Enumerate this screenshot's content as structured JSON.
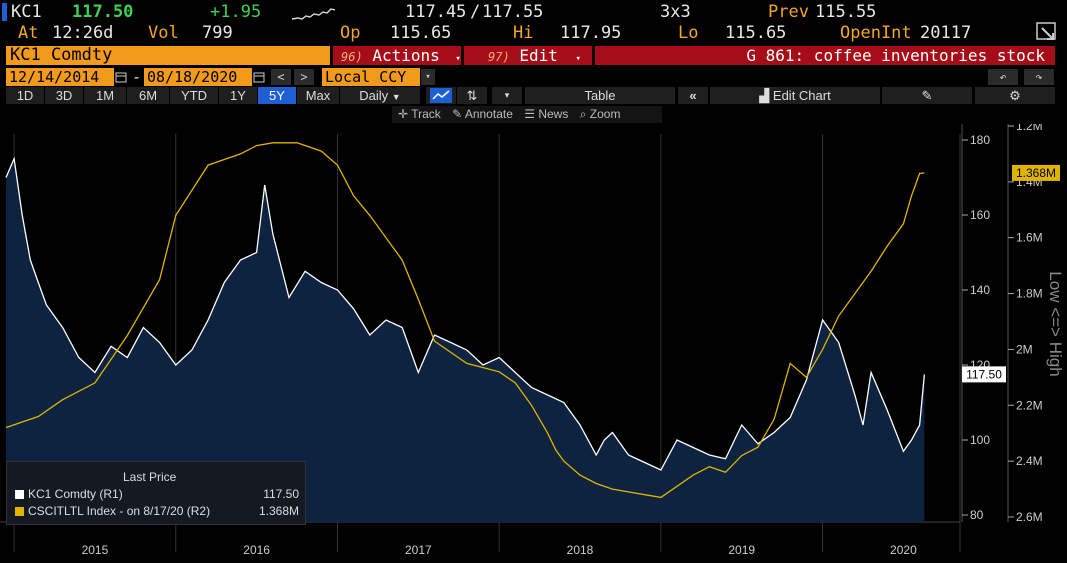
{
  "quote": {
    "ticker": "KC1",
    "last": "117.50",
    "change": "+1.95",
    "bidask_bid": "117.45",
    "bidask_ask": "117.55",
    "size": "3x3",
    "prev_label": "Prev",
    "prev": "115.55",
    "at_label": "At",
    "time": "12:26d",
    "vol_label": "Vol",
    "vol": "799",
    "op_label": "Op",
    "open": "115.65",
    "hi_label": "Hi",
    "high": "117.95",
    "lo_label": "Lo",
    "low": "115.65",
    "openint_label": "OpenInt",
    "openint": "20117"
  },
  "security": {
    "name": "KC1 Comdty",
    "actions_num": "96)",
    "actions": "Actions",
    "edit_num": "97)",
    "edit": "Edit",
    "graph_title": "G 861: coffee inventories stock"
  },
  "range": {
    "start": "12/14/2014",
    "dash": "-",
    "end": "08/18/2020",
    "currency": "Local CCY"
  },
  "periods": [
    "1D",
    "3D",
    "1M",
    "6M",
    "YTD",
    "1Y",
    "5Y",
    "Max"
  ],
  "selected_period": "5Y",
  "toolbar": {
    "frequency": "Daily",
    "table": "Table",
    "edit_chart": "Edit Chart"
  },
  "chart_tools": {
    "track": "Track",
    "annotate": "Annotate",
    "news": "News",
    "zoom": "Zoom"
  },
  "legend": {
    "title": "Last Price",
    "s1_name": "KC1 Comdty  (R1)",
    "s1_value": "117.50",
    "s2_name": "CSCITLTL Index -  on 8/17/20  (R2)",
    "s2_value": "1.368M"
  },
  "axis_label_right2": "Low <=> High",
  "chart_data": {
    "type": "line",
    "x_years": [
      "2015",
      "2016",
      "2017",
      "2018",
      "2019",
      "2020"
    ],
    "price_axis": {
      "min": 80,
      "max": 180,
      "ticks": [
        "180",
        "160",
        "140",
        "120",
        "100",
        "80"
      ]
    },
    "inv_axis": {
      "ticks": [
        "1.2M",
        "1.4M",
        "1.6M",
        "1.8M",
        "2M",
        "2.2M",
        "2.4M",
        "2.6M"
      ],
      "inverted": true
    },
    "last_price_label": "117.50",
    "last_inv_label": "1.368M",
    "colors": {
      "price": "#ffffff",
      "price_fill": "#0d2340",
      "inventory": "#e0b400"
    },
    "series": [
      {
        "name": "KC1 Comdty",
        "t": [
          2014.95,
          2015.0,
          2015.05,
          2015.1,
          2015.15,
          2015.2,
          2015.3,
          2015.4,
          2015.5,
          2015.6,
          2015.7,
          2015.8,
          2015.9,
          2016.0,
          2016.1,
          2016.2,
          2016.3,
          2016.4,
          2016.5,
          2016.55,
          2016.6,
          2016.7,
          2016.8,
          2016.9,
          2017.0,
          2017.1,
          2017.2,
          2017.3,
          2017.4,
          2017.5,
          2017.6,
          2017.7,
          2017.8,
          2017.9,
          2018.0,
          2018.1,
          2018.2,
          2018.3,
          2018.4,
          2018.5,
          2018.6,
          2018.65,
          2018.7,
          2018.8,
          2018.9,
          2019.0,
          2019.1,
          2019.2,
          2019.3,
          2019.4,
          2019.5,
          2019.6,
          2019.7,
          2019.75,
          2019.8,
          2019.9,
          2020.0,
          2020.1,
          2020.2,
          2020.25,
          2020.3,
          2020.4,
          2020.5,
          2020.55,
          2020.6,
          2020.63
        ],
        "values": [
          170,
          175,
          160,
          148,
          142,
          136,
          130,
          122,
          118,
          125,
          122,
          130,
          126,
          120,
          124,
          132,
          142,
          148,
          150,
          168,
          155,
          138,
          145,
          142,
          140,
          135,
          128,
          132,
          130,
          118,
          128,
          126,
          124,
          120,
          122,
          118,
          114,
          112,
          110,
          104,
          96,
          100,
          102,
          96,
          94,
          92,
          100,
          98,
          96,
          95,
          104,
          99,
          102,
          104,
          106,
          116,
          132,
          126,
          112,
          104,
          118,
          108,
          97,
          100,
          104,
          117.5
        ]
      },
      {
        "name": "CSCITLTL Index",
        "t": [
          2014.95,
          2015.05,
          2015.15,
          2015.3,
          2015.5,
          2015.7,
          2015.9,
          2016.0,
          2016.2,
          2016.4,
          2016.5,
          2016.6,
          2016.75,
          2016.9,
          2017.0,
          2017.1,
          2017.2,
          2017.3,
          2017.4,
          2017.5,
          2017.6,
          2017.8,
          2018.0,
          2018.1,
          2018.2,
          2018.3,
          2018.35,
          2018.4,
          2018.5,
          2018.6,
          2018.7,
          2018.8,
          2018.9,
          2019.0,
          2019.1,
          2019.2,
          2019.3,
          2019.4,
          2019.5,
          2019.6,
          2019.7,
          2019.8,
          2019.9,
          2020.0,
          2020.1,
          2020.2,
          2020.3,
          2020.4,
          2020.5,
          2020.55,
          2020.6,
          2020.63
        ],
        "values": [
          2.28,
          2.26,
          2.24,
          2.18,
          2.12,
          1.95,
          1.75,
          1.52,
          1.34,
          1.3,
          1.27,
          1.26,
          1.26,
          1.29,
          1.34,
          1.45,
          1.52,
          1.6,
          1.68,
          1.82,
          1.97,
          2.05,
          2.08,
          2.12,
          2.2,
          2.3,
          2.36,
          2.4,
          2.45,
          2.48,
          2.5,
          2.51,
          2.52,
          2.53,
          2.49,
          2.45,
          2.42,
          2.44,
          2.38,
          2.35,
          2.25,
          2.05,
          2.1,
          2.0,
          1.88,
          1.8,
          1.72,
          1.63,
          1.55,
          1.45,
          1.37,
          1.368
        ]
      }
    ]
  }
}
